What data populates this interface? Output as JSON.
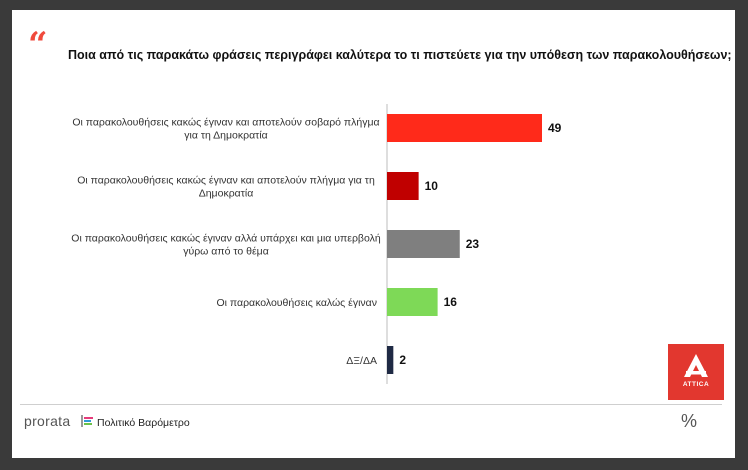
{
  "question": "Ποια από τις παρακάτω φράσεις περιγράφει καλύτερα το τι πιστεύετε για την υπόθεση των παρακολουθήσεων;",
  "quote_mark": "“",
  "logo": {
    "text": "ATTICA",
    "color": "#e2372f",
    "icon": "attica-a-logo"
  },
  "footer": {
    "brand": "prorata",
    "title": "Πολιτικό Βαρόμετρο",
    "icon": "percent-icon"
  },
  "chart_data": {
    "type": "bar",
    "orientation": "horizontal",
    "xlim": [
      0,
      55
    ],
    "grid": false,
    "categories": [
      [
        "Οι παρακολουθήσεις κακώς έγιναν και αποτελούν σοβαρό πλήγμα",
        "για τη Δημοκρατία"
      ],
      [
        "Οι παρακολουθήσεις κακώς έγιναν και αποτελούν πλήγμα για τη",
        "Δημοκρατία"
      ],
      [
        "Οι παρακολουθήσεις κακώς έγιναν αλλά υπάρχει και μια υπερβολή",
        "γύρω από το θέμα"
      ],
      [
        "Οι παρακολουθήσεις καλώς έγιναν"
      ],
      [
        "ΔΞ/ΔΑ"
      ]
    ],
    "values": [
      49,
      10,
      23,
      16,
      2
    ],
    "colors": [
      "#ff2a1a",
      "#c00000",
      "#7f7f7f",
      "#7ed957",
      "#1f2a44"
    ]
  }
}
